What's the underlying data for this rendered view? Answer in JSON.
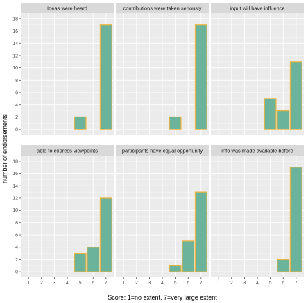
{
  "chart_data": {
    "type": "bar",
    "xlabel": "Score: 1=no extent, 7=very large extent",
    "ylabel": "number of endorsements",
    "categories": [
      "1",
      "2",
      "3",
      "4",
      "5",
      "6",
      "7"
    ],
    "ylim": [
      0,
      18
    ],
    "yticks": [
      "0",
      "2",
      "4",
      "6",
      "8",
      "10",
      "12",
      "14",
      "16",
      "18"
    ],
    "grid": true,
    "colors": {
      "bar_fill": "#6bb39a",
      "bar_outline": "#f0b43c",
      "panel_background": "#ebebeb",
      "strip_background": "#d9d9d9"
    },
    "panels": [
      {
        "title": "Ideas were heard",
        "values": [
          0,
          0,
          0,
          0,
          2,
          0,
          17
        ]
      },
      {
        "title": "contributions were taken seriously",
        "values": [
          0,
          0,
          0,
          0,
          2,
          0,
          17
        ]
      },
      {
        "title": "input will have influence",
        "values": [
          0,
          0,
          0,
          0,
          5,
          3,
          11
        ]
      },
      {
        "title": "able to express viewpoints",
        "values": [
          0,
          0,
          0,
          0,
          3,
          4,
          12
        ]
      },
      {
        "title": "participants have equal opportunity",
        "values": [
          0,
          0,
          0,
          0,
          1,
          5,
          13
        ]
      },
      {
        "title": "info was made available before",
        "values": [
          0,
          0,
          0,
          0,
          0,
          2,
          17
        ]
      }
    ]
  }
}
